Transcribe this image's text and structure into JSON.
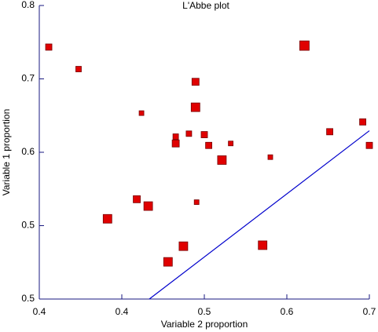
{
  "chart_data": {
    "type": "scatter",
    "title": "L'Abbe plot",
    "xlabel": "Variable 2 proportion",
    "ylabel": "Variable 1 proportion",
    "xlim": [
      0.4,
      0.7
    ],
    "ylim": [
      0.5,
      0.8
    ],
    "xticks": [
      {
        "value": 0.4,
        "label": "0.4"
      },
      {
        "value": 0.475,
        "label": "0.4"
      },
      {
        "value": 0.55,
        "label": "0.5"
      },
      {
        "value": 0.625,
        "label": "0.6"
      },
      {
        "value": 0.7,
        "label": "0.7"
      }
    ],
    "yticks": [
      {
        "value": 0.5,
        "label": "0.5"
      },
      {
        "value": 0.575,
        "label": "0.5"
      },
      {
        "value": 0.65,
        "label": "0.6"
      },
      {
        "value": 0.725,
        "label": "0.7"
      },
      {
        "value": 0.8,
        "label": "0.8"
      }
    ],
    "color": "#e00000",
    "x": [
      0.4086,
      0.4357,
      0.462,
      0.4886,
      0.4929,
      0.499,
      0.517,
      0.524,
      0.524,
      0.531,
      0.536,
      0.542,
      0.542,
      0.543,
      0.55,
      0.554,
      0.566,
      0.574,
      0.603,
      0.61,
      0.641,
      0.664,
      0.694,
      0.7
    ],
    "values": [
      0.7575,
      0.735,
      0.582,
      0.602,
      0.69,
      0.595,
      0.538,
      0.666,
      0.659,
      0.554,
      0.669,
      0.722,
      0.696,
      0.599,
      0.668,
      0.657,
      0.642,
      0.659,
      0.555,
      0.645,
      0.759,
      0.671,
      0.681,
      0.657
    ],
    "sizes": [
      8,
      7,
      11,
      9,
      6,
      11,
      11,
      7,
      9,
      11,
      7,
      9,
      11,
      6,
      8,
      8,
      11,
      6,
      11,
      6,
      12,
      8,
      8,
      8
    ],
    "line": {
      "color": "#0000cc",
      "x": [
        0.5,
        0.7
      ],
      "values": [
        0.5,
        0.672
      ]
    }
  }
}
